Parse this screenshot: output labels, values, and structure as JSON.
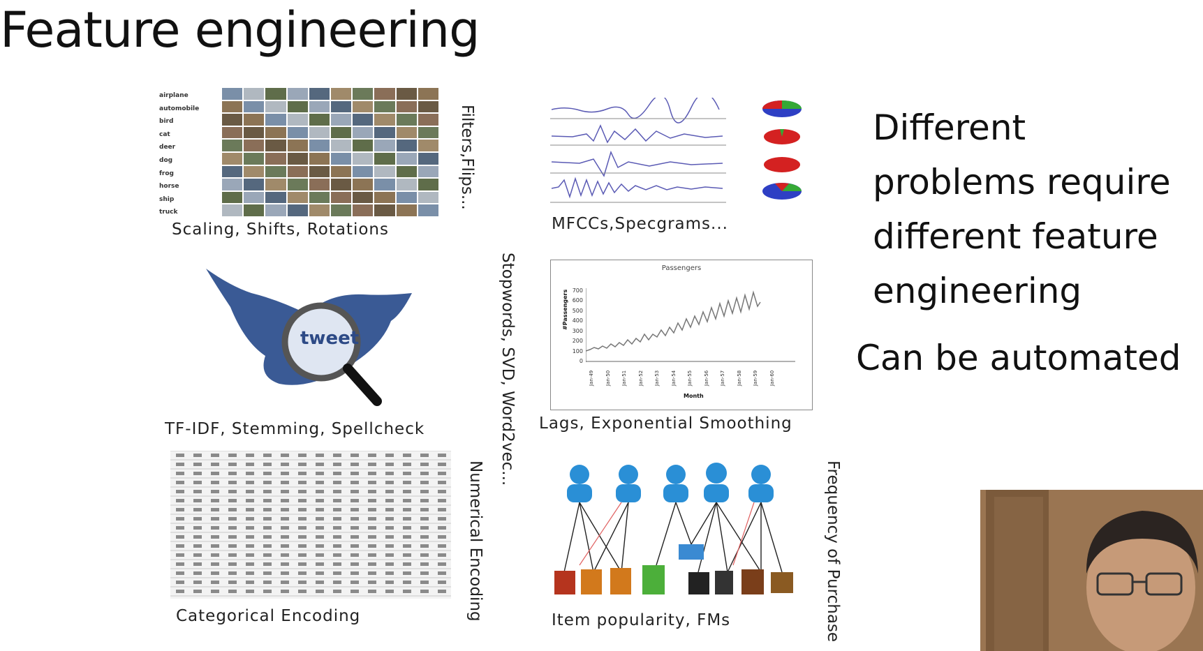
{
  "slide": {
    "title": "Feature engineering",
    "captions": {
      "images": "Scaling, Shifts, Rotations",
      "images_side": "Filters,Flips...",
      "audio": "MFCCs,Specgrams...",
      "text_side": "Stopwords, SVD, Word2vec...",
      "text": "TF-IDF, Stemming, Spellcheck",
      "timeseries": "Lags, Exponential Smoothing",
      "table_side": "Numerical Encoding",
      "table": "Categorical Encoding",
      "recsys_side": "Frequency of Purchase",
      "recsys": "Item popularity, FMs"
    },
    "side_text": {
      "line1": "Different",
      "line2": "problems require",
      "line3": "different feature",
      "line4": "engineering",
      "automated": "Can be automated"
    },
    "image_classes": [
      "airplane",
      "automobile",
      "bird",
      "cat",
      "deer",
      "dog",
      "frog",
      "horse",
      "ship",
      "truck"
    ],
    "tweet_word": "tweet",
    "passengers_chart": {
      "title": "Passengers",
      "ylabel": "#Passengers",
      "xlabel": "Month",
      "yticks": [
        "0",
        "100",
        "200",
        "300",
        "400",
        "500",
        "600",
        "700"
      ],
      "xticks": [
        "Jan-49",
        "Jan-50",
        "Jan-51",
        "Jan-52",
        "Jan-53",
        "Jan-54",
        "Jan-55",
        "Jan-56",
        "Jan-57",
        "Jan-58",
        "Jan-59",
        "Jan-60"
      ]
    },
    "colors": {
      "title": "#111111",
      "signal": "#5a5ab4",
      "people_blue": "#2a8fd6",
      "book_red": "#b5341e",
      "book_orange": "#d2791c"
    }
  }
}
